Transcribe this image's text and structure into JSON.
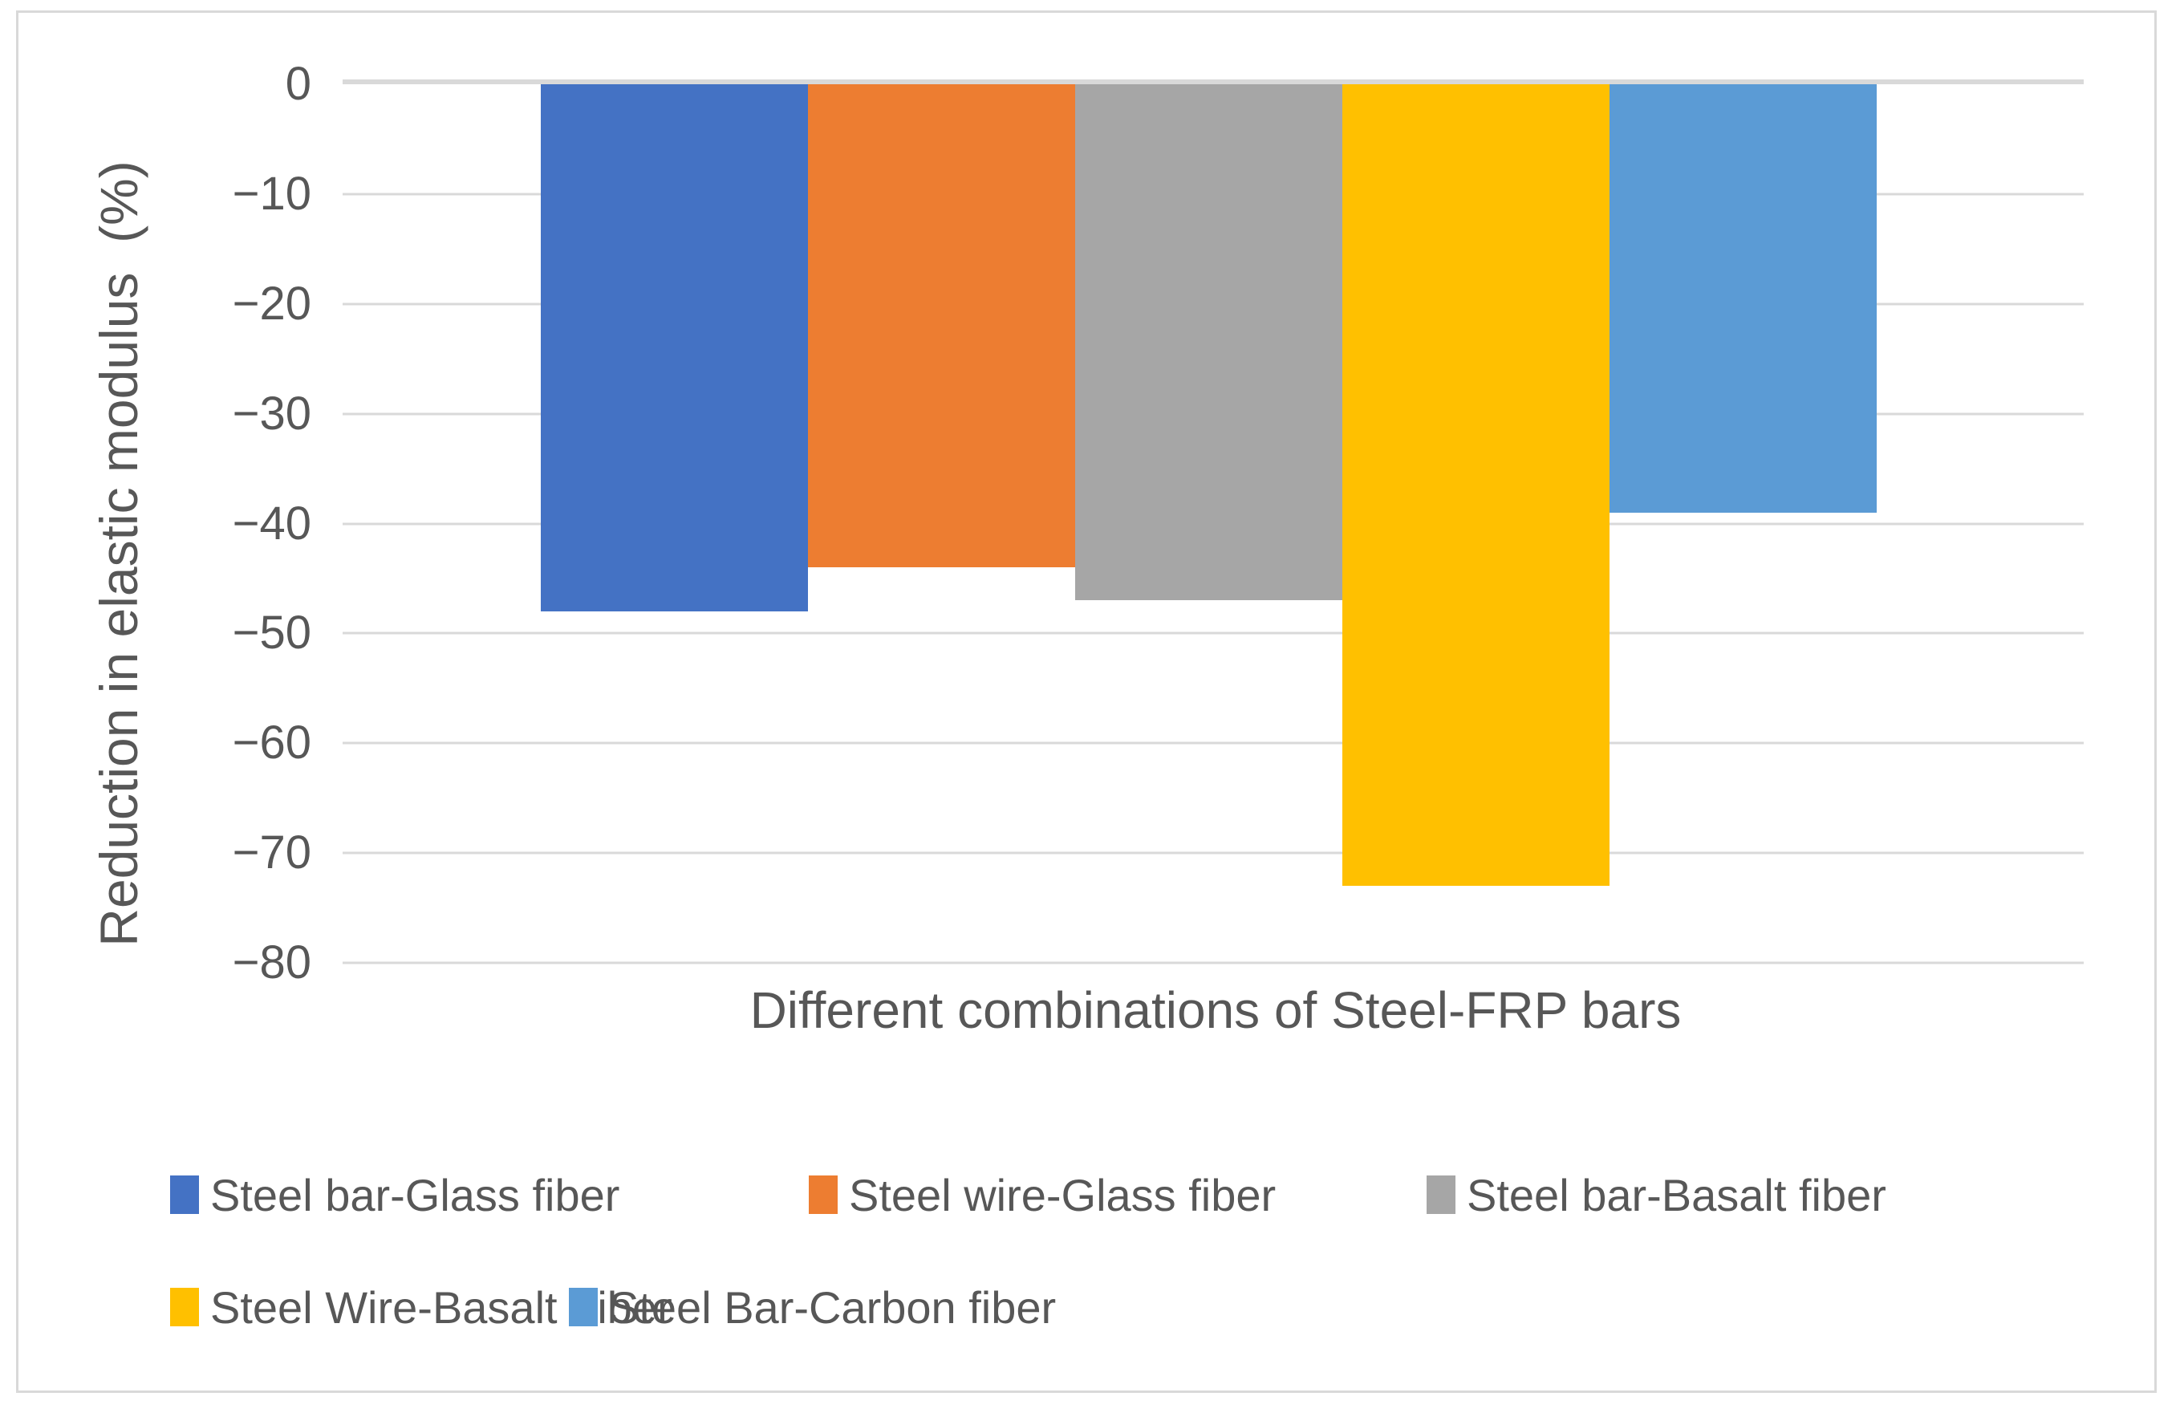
{
  "chart_data": {
    "type": "bar",
    "title": "",
    "xlabel": "Different combinations of Steel-FRP bars",
    "ylabel": "Reduction in elastic modulus  (%)",
    "ylim": [
      -80,
      0
    ],
    "ytick_interval": 10,
    "yticks": [
      "0",
      "−10",
      "−20",
      "−30",
      "−40",
      "−50",
      "−60",
      "−70",
      "−80"
    ],
    "ytick_values": [
      0,
      -10,
      -20,
      -30,
      -40,
      -50,
      -60,
      -70,
      -80
    ],
    "grid": true,
    "legend_position": "bottom",
    "categories": [
      "Different combinations of Steel-FRP bars"
    ],
    "series": [
      {
        "name": "Steel bar-Glass fiber",
        "value": -48,
        "color": "#4472C4",
        "pattern": false
      },
      {
        "name": "Steel wire-Glass fiber",
        "value": -44,
        "color": "#ED7D31",
        "pattern": false
      },
      {
        "name": "Steel bar-Basalt fiber",
        "value": -47,
        "color": "#A6A6A6",
        "pattern": true
      },
      {
        "name": "Steel Wire-Basalt Fiber",
        "value": -73,
        "color": "#FFC000",
        "pattern": false
      },
      {
        "name": "Steel Bar-Carbon fiber",
        "value": -39,
        "color": "#5B9BD5",
        "pattern": false
      }
    ],
    "colors": {
      "gridline": "#D9D9D9",
      "axis_line": "#D9D9D9",
      "frame_border": "#D9D9D9",
      "text": "#575757"
    }
  }
}
